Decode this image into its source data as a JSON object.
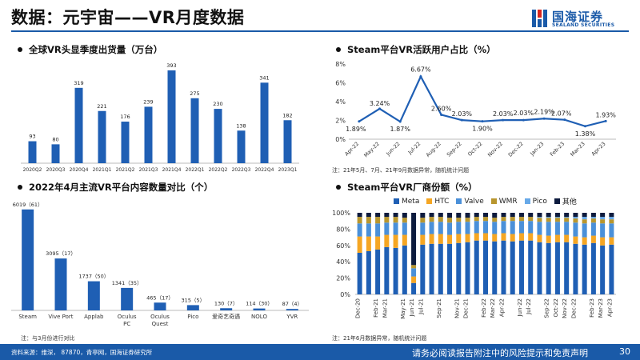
{
  "header": {
    "title": "数据：元宇宙——VR月度数据",
    "logo_text": "国海证券",
    "logo_sub": "SEALAND SECURITIES"
  },
  "panels": {
    "p1_title": "全球VR头显季度出货量（万台）",
    "p2_title": "Steam平台VR活跃用户占比（%）",
    "p3_title": "2022年4月主流VR平台内容数量对比（个）",
    "p4_title": "Steam平台VR厂商份额（%）"
  },
  "notes": {
    "p2_note": "注：21年5月、7月、21年9月数据异常，随机统计问题",
    "p3_note": "注：与3月份进行对比",
    "p4_note": "注：21年6月数据异常，随机统计问题"
  },
  "footer": {
    "left": "资料来源：维深， 87870，青亭网，国海证券研究所",
    "right": "请务必阅读报告附注中的风险提示和免责声明",
    "page": "30"
  },
  "colors": {
    "primary": "#1a5aa8",
    "bar": "#1f5fb4",
    "meta": "#1f5fb4",
    "htc": "#f5a623",
    "valve": "#4a90d9",
    "wmr": "#b8962e",
    "pico": "#67a9e8",
    "other": "#0d1b3e"
  },
  "chart_data": [
    {
      "type": "bar",
      "categories": [
        "2020Q2",
        "2020Q3",
        "2020Q4",
        "2021Q1",
        "2021Q2",
        "2021Q3",
        "2021Q4",
        "2022Q1",
        "2022Q2",
        "2022Q3",
        "2022Q4",
        "2023Q1"
      ],
      "values": [
        93,
        80,
        319,
        221,
        176,
        239,
        393,
        275,
        230,
        138,
        341,
        182
      ],
      "title": "全球VR头显季度出货量（万台）",
      "ylim": [
        0,
        420
      ]
    },
    {
      "type": "line",
      "categories": [
        "Apr-22",
        "May-22",
        "Jun-22",
        "Jul-22",
        "Aug-22",
        "Sep-22",
        "Oct-22",
        "Nov-22",
        "Dec-22",
        "Jan-23",
        "Feb-23",
        "Mar-23",
        "Apr-23"
      ],
      "values": [
        1.89,
        3.24,
        1.87,
        6.67,
        2.6,
        2.03,
        1.9,
        2.03,
        2.03,
        2.19,
        2.07,
        1.38,
        1.93
      ],
      "data_labels": [
        "1.89%",
        "3.24%",
        "1.87%",
        "6.67%",
        "2.60%",
        "2.03%",
        "1.90%",
        "2.03%",
        "2.03%",
        "2.19%",
        "2.07%",
        "1.38%",
        "1.93%"
      ],
      "y_ticks": [
        "0%",
        "2%",
        "4%",
        "6%",
        "8%"
      ],
      "title": "Steam平台VR活跃用户占比（%）",
      "ylim": [
        0,
        8
      ]
    },
    {
      "type": "bar",
      "categories": [
        "Steam",
        "Vive Port",
        "Applab",
        "Oculus PC",
        "Oculus Quest",
        "Pico",
        "爱奇艺奇遇",
        "NOLO",
        "YVR"
      ],
      "values": [
        6019,
        3095,
        1737,
        1341,
        465,
        315,
        130,
        114,
        87
      ],
      "changes": [
        61,
        17,
        50,
        35,
        17,
        5,
        7,
        30,
        4
      ],
      "data_labels": [
        "6019（61）",
        "3095（17）",
        "1737（50）",
        "1341（35）",
        "465（17）",
        "315（5）",
        "130（7）",
        "114（30）",
        "87（4）"
      ],
      "title": "2022年4月主流VR平台内容数量对比（个）",
      "ylim": [
        0,
        6200
      ]
    },
    {
      "type": "bar",
      "stacked": true,
      "categories": [
        "Dec-20",
        "Jan-21",
        "Feb-21",
        "Mar-21",
        "Apr-21",
        "May-21",
        "Jun-21",
        "Jul-21",
        "Aug-21",
        "Sep-21",
        "Oct-21",
        "Nov-21",
        "Dec-21",
        "Jan-22",
        "Feb-22",
        "Mar-22",
        "Apr-22",
        "May-22",
        "Jun-22",
        "Jul-22",
        "Aug-22",
        "Sep-22",
        "Oct-22",
        "Nov-22",
        "Dec-22",
        "Jan-23",
        "Feb-23",
        "Mar-23",
        "Apr-23"
      ],
      "x_tick_labels": [
        "Dec-20",
        "Feb-21",
        "Mar-21",
        "May-21",
        "Jun-21",
        "Jul-21",
        "Sep-21",
        "Nov-21",
        "Dec-21",
        "Feb-22",
        "Mar-22",
        "Apr-22",
        "Jun-22",
        "Jul-22",
        "Sep-22",
        "Oct-22",
        "Nov-22",
        "Dec-22",
        "Feb-23",
        "Mar-23",
        "Apr-23"
      ],
      "x_tick_index": [
        0,
        2,
        3,
        5,
        6,
        7,
        9,
        11,
        12,
        14,
        15,
        16,
        18,
        19,
        21,
        22,
        23,
        24,
        26,
        27,
        28
      ],
      "series": [
        {
          "name": "Meta",
          "values": [
            51,
            53,
            55,
            58,
            57,
            60,
            14,
            61,
            62,
            62,
            62,
            63,
            64,
            66,
            66,
            65,
            66,
            65,
            66,
            66,
            64,
            63,
            64,
            64,
            62,
            61,
            63,
            60,
            61
          ]
        },
        {
          "name": "HTC",
          "values": [
            20,
            18,
            16,
            15,
            16,
            13,
            8,
            12,
            12,
            12,
            11,
            11,
            10,
            9,
            9,
            9,
            9,
            9,
            9,
            9,
            9,
            9,
            9,
            9,
            9,
            9,
            9,
            10,
            9
          ]
        },
        {
          "name": "Valve",
          "values": [
            16,
            16,
            16,
            15,
            15,
            15,
            10,
            15,
            15,
            15,
            15,
            15,
            15,
            15,
            15,
            15,
            15,
            16,
            15,
            15,
            16,
            17,
            16,
            16,
            17,
            17,
            16,
            17,
            17
          ]
        },
        {
          "name": "WMR",
          "values": [
            8,
            8,
            8,
            7,
            7,
            6,
            4,
            6,
            6,
            6,
            6,
            5,
            5,
            5,
            5,
            5,
            5,
            5,
            5,
            5,
            5,
            5,
            5,
            5,
            5,
            5,
            5,
            5,
            5
          ]
        },
        {
          "name": "Pico",
          "values": [
            0,
            0,
            0,
            0,
            0,
            0,
            0,
            0,
            0,
            0,
            0,
            0,
            0,
            0,
            0,
            0,
            0,
            0,
            0,
            0,
            1,
            1,
            1,
            1,
            2,
            3,
            2,
            3,
            3
          ]
        },
        {
          "name": "其他",
          "values": [
            5,
            5,
            5,
            5,
            5,
            6,
            64,
            6,
            5,
            5,
            6,
            6,
            6,
            5,
            5,
            6,
            5,
            5,
            5,
            5,
            5,
            5,
            5,
            5,
            5,
            5,
            5,
            5,
            5
          ]
        }
      ],
      "y_ticks": [
        "0%",
        "20%",
        "40%",
        "60%",
        "80%",
        "100%"
      ],
      "title": "Steam平台VR厂商份额（%）",
      "ylim": [
        0,
        100
      ]
    }
  ]
}
